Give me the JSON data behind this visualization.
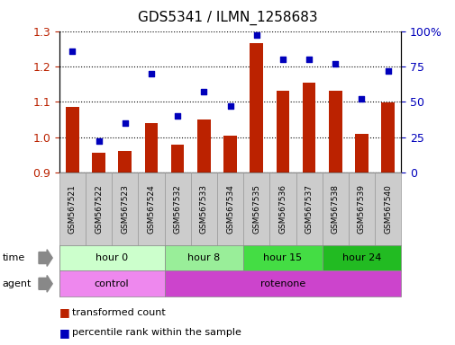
{
  "title": "GDS5341 / ILMN_1258683",
  "samples": [
    "GSM567521",
    "GSM567522",
    "GSM567523",
    "GSM567524",
    "GSM567532",
    "GSM567533",
    "GSM567534",
    "GSM567535",
    "GSM567536",
    "GSM567537",
    "GSM567538",
    "GSM567539",
    "GSM567540"
  ],
  "bar_values": [
    1.085,
    0.955,
    0.96,
    1.04,
    0.98,
    1.05,
    1.005,
    1.265,
    1.13,
    1.155,
    1.13,
    1.01,
    1.098
  ],
  "scatter_values": [
    86,
    22,
    35,
    70,
    40,
    57,
    47,
    97,
    80,
    80,
    77,
    52,
    72
  ],
  "bar_color": "#BB2200",
  "scatter_color": "#0000BB",
  "ylim_left": [
    0.9,
    1.3
  ],
  "ylim_right": [
    0,
    100
  ],
  "yticks_left": [
    0.9,
    1.0,
    1.1,
    1.2,
    1.3
  ],
  "ytick_labels_right": [
    "0",
    "25",
    "50",
    "75",
    "100%"
  ],
  "yticks_right": [
    0,
    25,
    50,
    75,
    100
  ],
  "time_groups": [
    {
      "label": "hour 0",
      "start": 0,
      "end": 4,
      "color": "#CCFFCC"
    },
    {
      "label": "hour 8",
      "start": 4,
      "end": 7,
      "color": "#99EE99"
    },
    {
      "label": "hour 15",
      "start": 7,
      "end": 10,
      "color": "#44DD44"
    },
    {
      "label": "hour 24",
      "start": 10,
      "end": 13,
      "color": "#22BB22"
    }
  ],
  "agent_groups": [
    {
      "label": "control",
      "start": 0,
      "end": 4,
      "color": "#EE88EE"
    },
    {
      "label": "rotenone",
      "start": 4,
      "end": 13,
      "color": "#CC44CC"
    }
  ],
  "legend_bar_label": "transformed count",
  "legend_scatter_label": "percentile rank within the sample",
  "time_label": "time",
  "agent_label": "agent",
  "background_color": "#FFFFFF",
  "tick_box_color": "#CCCCCC",
  "tick_box_edge": "#999999"
}
